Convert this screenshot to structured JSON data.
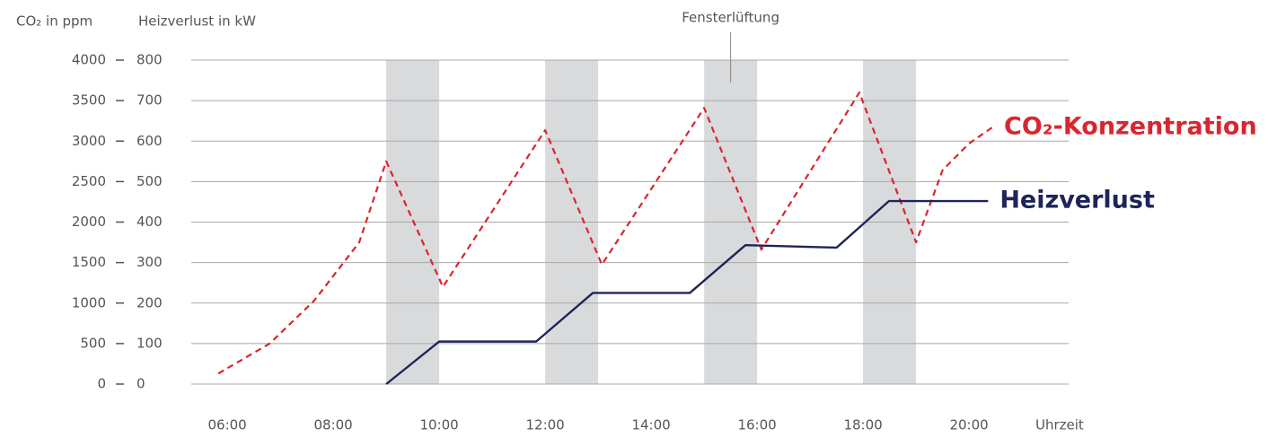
{
  "chart_data": {
    "type": "line",
    "ylabel": "CO₂ in ppm",
    "y2label": "Heizverlust in kW",
    "xlabel": "Uhrzeit",
    "xlim": [
      5.32,
      21.88
    ],
    "xticks": [
      {
        "value": 6,
        "label": "06:00"
      },
      {
        "value": 8,
        "label": "08:00"
      },
      {
        "value": 10,
        "label": "10:00"
      },
      {
        "value": 12,
        "label": "12:00"
      },
      {
        "value": 14,
        "label": "14:00"
      },
      {
        "value": 16,
        "label": "16:00"
      },
      {
        "value": 18,
        "label": "18:00"
      },
      {
        "value": 20,
        "label": "20:00"
      }
    ],
    "ylim": [
      0,
      4000
    ],
    "yticks": [
      0,
      500,
      1000,
      1500,
      2000,
      2500,
      3000,
      3500,
      4000
    ],
    "y2lim": [
      0,
      800
    ],
    "y2ticks": [
      0,
      100,
      200,
      300,
      400,
      500,
      600,
      700,
      800
    ],
    "grid": true,
    "shaded_regions": [
      [
        9,
        10
      ],
      [
        12,
        13
      ],
      [
        15,
        16
      ],
      [
        18,
        19
      ]
    ],
    "shaded_color": "#d9dadc",
    "annotations": [
      {
        "text": "Fensterlüftung",
        "x": 15.5
      }
    ],
    "series": [
      {
        "name": "CO₂-Konzentration",
        "color": "#d9262e",
        "dashed": true,
        "x": [
          5.83,
          6.8,
          7.64,
          8.49,
          9.0,
          10.07,
          12.0,
          13.07,
          15.0,
          16.08,
          17.93,
          19.0,
          19.5,
          20.0,
          20.44
        ],
        "values": [
          130,
          500,
          1030,
          1750,
          2750,
          1200,
          3135,
          1475,
          3410,
          1660,
          3600,
          1750,
          2640,
          2970,
          3170
        ]
      },
      {
        "name": "Heizverlust",
        "color": "#1f2458",
        "axis": "y2",
        "x": [
          9.0,
          10.0,
          11.83,
          12.9,
          14.73,
          15.78,
          17.5,
          18.49,
          20.36
        ],
        "values": [
          0,
          105,
          105,
          225,
          225,
          343,
          337,
          452,
          452
        ]
      }
    ]
  }
}
